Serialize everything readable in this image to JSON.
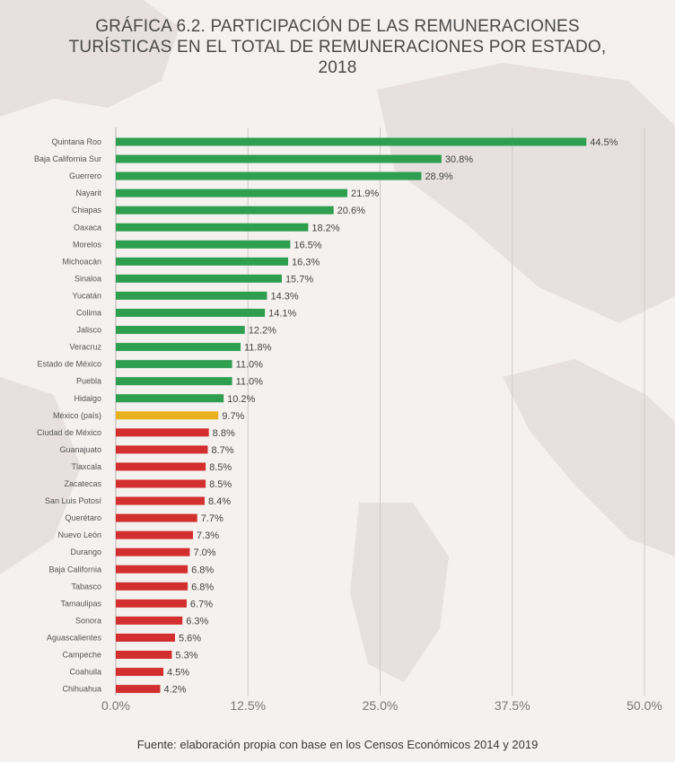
{
  "chart_data": {
    "type": "bar",
    "orientation": "horizontal",
    "title_lines": [
      "GRÁFICA 6.2. PARTICIPACIÓN DE LAS REMUNERACIONES",
      "TURÍSTICAS EN EL TOTAL DE REMUNERACIONES POR ESTADO,",
      "2018"
    ],
    "categories": [
      "Quintana Roo",
      "Baja California Sur",
      "Guerrero",
      "Nayarit",
      "Chiapas",
      "Oaxaca",
      "Morelos",
      "Michoacán",
      "Sinaloa",
      "Yucatán",
      "Colima",
      "Jalisco",
      "Veracruz",
      "Estado de México",
      "Puebla",
      "Hidalgo",
      "México (país)",
      "Ciudad de México",
      "Guanajuato",
      "Tlaxcala",
      "Zacatecas",
      "San Luis Potosí",
      "Querétaro",
      "Nuevo León",
      "Durango",
      "Baja California",
      "Tabasco",
      "Tamaulipas",
      "Sonora",
      "Aguascalientes",
      "Campeche",
      "Coahuila",
      "Chihuahua"
    ],
    "values": [
      44.5,
      30.8,
      28.9,
      21.9,
      20.6,
      18.2,
      16.5,
      16.3,
      15.7,
      14.3,
      14.1,
      12.2,
      11.8,
      11.0,
      11.0,
      10.2,
      9.7,
      8.8,
      8.7,
      8.5,
      8.5,
      8.4,
      7.7,
      7.3,
      7.0,
      6.8,
      6.8,
      6.7,
      6.3,
      5.6,
      5.3,
      4.5,
      4.2
    ],
    "value_labels": [
      "44.5%",
      "30.8%",
      "28.9%",
      "21.9%",
      "20.6%",
      "18.2%",
      "16.5%",
      "16.3%",
      "15.7%",
      "14.3%",
      "14.1%",
      "12.2%",
      "11.8%",
      "11.0%",
      "11.0%",
      "10.2%",
      "9.7%",
      "8.8%",
      "8.7%",
      "8.5%",
      "8.5%",
      "8.4%",
      "7.7%",
      "7.3%",
      "7.0%",
      "6.8%",
      "6.8%",
      "6.7%",
      "6.3%",
      "5.6%",
      "5.3%",
      "4.5%",
      "4.2%"
    ],
    "colors": [
      "#2e9e4f",
      "#2e9e4f",
      "#2e9e4f",
      "#2e9e4f",
      "#2e9e4f",
      "#2e9e4f",
      "#2e9e4f",
      "#2e9e4f",
      "#2e9e4f",
      "#2e9e4f",
      "#2e9e4f",
      "#2e9e4f",
      "#2e9e4f",
      "#2e9e4f",
      "#2e9e4f",
      "#2e9e4f",
      "#e9b320",
      "#d32f2f",
      "#d32f2f",
      "#d32f2f",
      "#d32f2f",
      "#d32f2f",
      "#d32f2f",
      "#d32f2f",
      "#d32f2f",
      "#d32f2f",
      "#d32f2f",
      "#d32f2f",
      "#d32f2f",
      "#d32f2f",
      "#d32f2f",
      "#d32f2f",
      "#d32f2f"
    ],
    "xlim": [
      0,
      50
    ],
    "x_ticks": [
      0,
      12.5,
      25,
      37.5,
      50
    ],
    "x_tick_labels": [
      "0.0%",
      "12.5%",
      "25.0%",
      "37.5%",
      "50.0%"
    ],
    "grid": "vertical"
  },
  "footnote": "Fuente: elaboración propia con base en los Censos Económicos 2014 y 2019"
}
